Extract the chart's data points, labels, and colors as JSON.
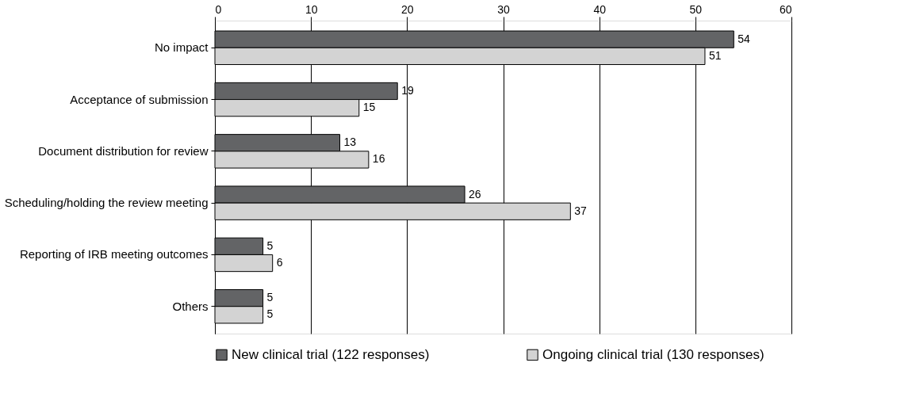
{
  "chart_data": {
    "type": "bar",
    "orientation": "horizontal",
    "categories": [
      "No impact",
      "Acceptance of submission",
      "Document distribution for review",
      "Scheduling/holding the review meeting",
      "Reporting of IRB meeting outcomes",
      "Others"
    ],
    "series": [
      {
        "name": "New clinical trial (122 responses)",
        "color": "#636466",
        "values": [
          54,
          19,
          13,
          26,
          5,
          5
        ]
      },
      {
        "name": "Ongoing clinical trial (130 responses)",
        "color": "#d3d3d3",
        "values": [
          51,
          15,
          16,
          37,
          6,
          5
        ]
      }
    ],
    "xlim": [
      0,
      60
    ],
    "xticks": [
      0,
      10,
      20,
      30,
      40,
      50,
      60
    ],
    "grid": "x",
    "legend": "bottom",
    "data_labels": true
  }
}
